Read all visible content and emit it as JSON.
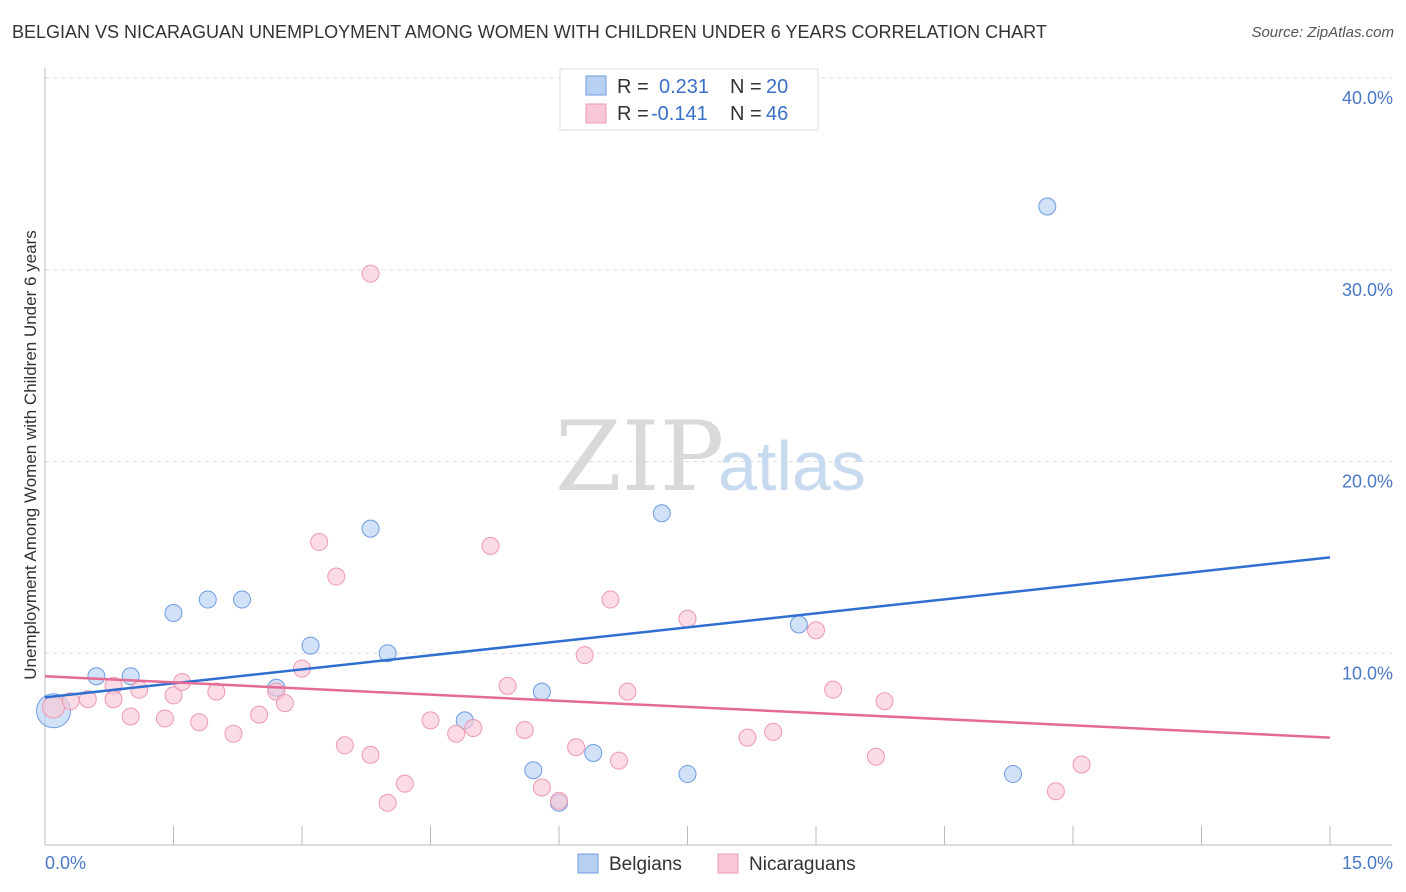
{
  "title": "BELGIAN VS NICARAGUAN UNEMPLOYMENT AMONG WOMEN WITH CHILDREN UNDER 6 YEARS CORRELATION CHART",
  "source": "Source: ZipAtlas.com",
  "watermark": {
    "zip": "ZIP",
    "atlas": "atlas"
  },
  "legend": {
    "rows": [
      {
        "r_label": "R =",
        "r_value": "0.231",
        "n_label": "N =",
        "n_value": "20"
      },
      {
        "r_label": "R =",
        "r_value": "-0.141",
        "n_label": "N =",
        "n_value": "46"
      }
    ]
  },
  "bottom_legend": {
    "belgians": "Belgians",
    "nicaraguans": "Nicaraguans"
  },
  "colors": {
    "belgian_fill": "#b8d1f3",
    "belgian_stroke": "#6f9be0",
    "belgian_line": "#2f6fd0",
    "nicaraguan_fill": "#f9c8d6",
    "nicaraguan_stroke": "#ee98b4",
    "nicaraguan_line": "#e56b94",
    "tick_label": "#4a78c5",
    "grid": "#dddddd"
  },
  "chart_data": {
    "type": "scatter",
    "xlabel": "",
    "ylabel": "Unemployment Among Women with Children Under 6 years",
    "xlim": [
      0,
      15
    ],
    "ylim": [
      0,
      40
    ],
    "x_tick_labels": [
      "0.0%",
      "15.0%"
    ],
    "y_ticks": [
      10,
      20,
      30,
      40
    ],
    "y_tick_labels": [
      "10.0%",
      "20.0%",
      "30.0%",
      "40.0%"
    ],
    "grid": true,
    "legend_position": "top-center",
    "series": [
      {
        "name": "Belgians",
        "points": [
          [
            0.1,
            7.0
          ],
          [
            0.6,
            8.8
          ],
          [
            1.0,
            8.8
          ],
          [
            1.5,
            12.1
          ],
          [
            1.9,
            12.8
          ],
          [
            2.3,
            12.8
          ],
          [
            2.7,
            8.2
          ],
          [
            3.1,
            10.4
          ],
          [
            3.8,
            16.5
          ],
          [
            4.0,
            10.0
          ],
          [
            4.9,
            6.5
          ],
          [
            5.8,
            8.0
          ],
          [
            5.7,
            3.9
          ],
          [
            6.0,
            2.2
          ],
          [
            6.4,
            4.8
          ],
          [
            7.2,
            17.3
          ],
          [
            7.5,
            3.7
          ],
          [
            8.8,
            11.5
          ],
          [
            11.7,
            33.3
          ],
          [
            11.3,
            3.7
          ]
        ],
        "trend": {
          "x": [
            0,
            15
          ],
          "y": [
            7.7,
            15.0
          ]
        }
      },
      {
        "name": "Nicaraguans",
        "points": [
          [
            0.1,
            7.2
          ],
          [
            0.3,
            7.5
          ],
          [
            0.5,
            7.6
          ],
          [
            0.8,
            8.3
          ],
          [
            1.1,
            8.1
          ],
          [
            1.0,
            6.7
          ],
          [
            1.4,
            6.6
          ],
          [
            1.5,
            7.8
          ],
          [
            1.6,
            8.5
          ],
          [
            1.8,
            6.4
          ],
          [
            2.0,
            8.0
          ],
          [
            2.2,
            5.8
          ],
          [
            2.5,
            6.8
          ],
          [
            2.7,
            8.0
          ],
          [
            2.8,
            7.4
          ],
          [
            3.0,
            9.2
          ],
          [
            3.2,
            15.8
          ],
          [
            3.4,
            14.0
          ],
          [
            3.5,
            5.2
          ],
          [
            3.8,
            4.7
          ],
          [
            3.8,
            29.8
          ],
          [
            4.0,
            2.2
          ],
          [
            4.2,
            3.2
          ],
          [
            4.5,
            6.5
          ],
          [
            4.8,
            5.8
          ],
          [
            5.0,
            6.1
          ],
          [
            5.2,
            15.6
          ],
          [
            5.4,
            8.3
          ],
          [
            5.6,
            6.0
          ],
          [
            5.8,
            3.0
          ],
          [
            6.0,
            2.3
          ],
          [
            6.2,
            5.1
          ],
          [
            6.3,
            9.9
          ],
          [
            6.6,
            12.8
          ],
          [
            6.7,
            4.4
          ],
          [
            6.8,
            8.0
          ],
          [
            7.5,
            11.8
          ],
          [
            8.2,
            5.6
          ],
          [
            8.5,
            5.9
          ],
          [
            9.0,
            11.2
          ],
          [
            9.2,
            8.1
          ],
          [
            9.7,
            4.6
          ],
          [
            9.8,
            7.5
          ],
          [
            11.8,
            2.8
          ],
          [
            12.1,
            4.2
          ],
          [
            0.8,
            7.6
          ]
        ],
        "trend": {
          "x": [
            0,
            15
          ],
          "y": [
            8.8,
            5.6
          ]
        }
      }
    ]
  }
}
